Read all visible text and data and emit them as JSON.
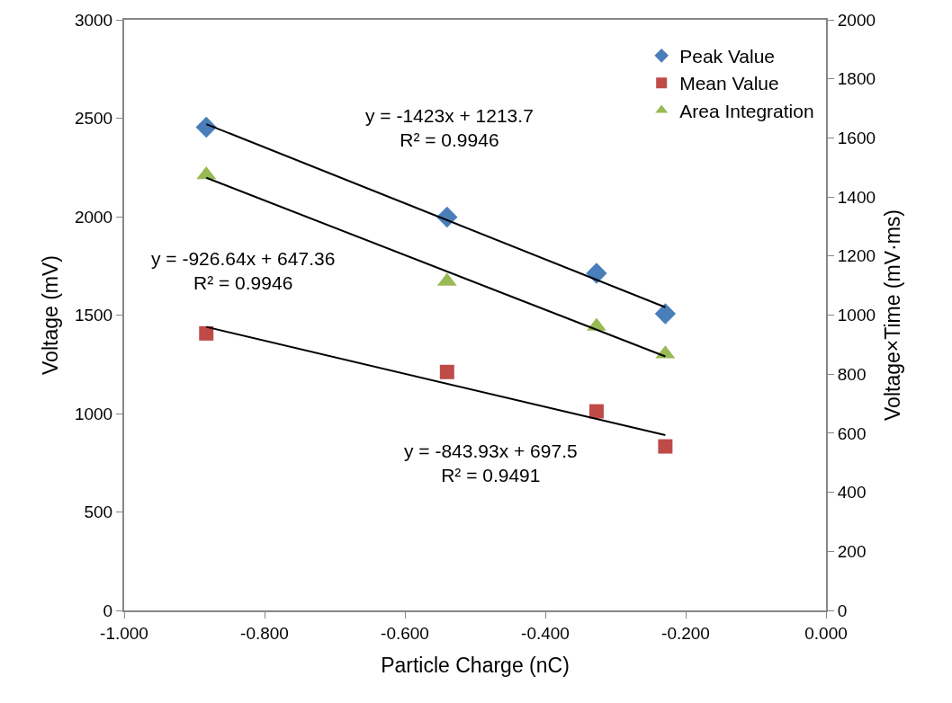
{
  "chart_data": {
    "type": "scatter",
    "xlabel": "Particle Charge (nC)",
    "ylabel": "Voltage (mV)",
    "y2label": "Voltage×Time (mV·ms)",
    "x": [
      -0.883,
      -0.54,
      -0.327,
      -0.229
    ],
    "series": [
      {
        "name": "Peak Value",
        "color": "#4a7ebb",
        "marker": "diamond",
        "values": [
          2454,
          1998,
          1712,
          1507
        ]
      },
      {
        "name": "Mean Value",
        "color": "#be4b48",
        "marker": "square",
        "values": [
          1407,
          1211,
          1011,
          833
        ]
      },
      {
        "name": "Area Integration",
        "color": "#98b954",
        "marker": "triangle",
        "axis": "y2",
        "values": [
          1475,
          1114,
          962,
          868
        ]
      },
      {
        "type": "line",
        "color": "#000000",
        "values": [
          2470,
          null,
          null,
          1540
        ]
      },
      {
        "type": "line",
        "color": "#000000",
        "values": [
          1440,
          null,
          null,
          890
        ]
      },
      {
        "type": "line",
        "color": "#000000",
        "axis": "y2",
        "values": [
          1465,
          null,
          null,
          860
        ]
      }
    ],
    "xlim": [
      -1.0,
      0.0
    ],
    "xticks": [
      {
        "value": -1.0,
        "label": "-1.000"
      },
      {
        "value": -0.8,
        "label": "-0.800"
      },
      {
        "value": -0.6,
        "label": "-0.600"
      },
      {
        "value": -0.4,
        "label": "-0.400"
      },
      {
        "value": -0.2,
        "label": "-0.200"
      },
      {
        "value": 0.0,
        "label": "0.000"
      }
    ],
    "ylim": [
      0,
      3000
    ],
    "yticks": [
      0,
      500,
      1000,
      1500,
      2000,
      2500,
      3000
    ],
    "y2lim": [
      0,
      2000
    ],
    "y2ticks": [
      0,
      200,
      400,
      600,
      800,
      1000,
      1200,
      1400,
      1600,
      1800,
      2000
    ],
    "annotations": [
      "y = -1423x + 1213.7\nR² = 0.9946",
      "y = -926.64x + 647.36\nR² = 0.9946",
      "y = -843.93x + 697.5\nR² = 0.9491"
    ],
    "legend": "top right"
  }
}
